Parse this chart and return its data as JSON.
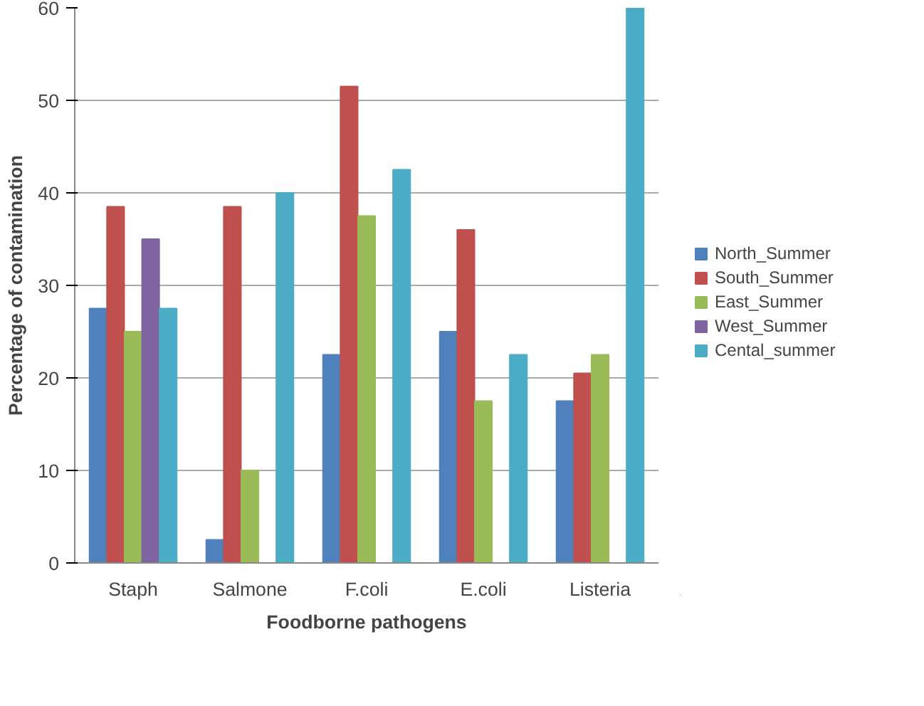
{
  "chart_data": {
    "type": "bar",
    "xlabel": "Foodborne pathogens",
    "ylabel": "Percentage of contamination",
    "categories": [
      "Staph",
      "Salmone",
      "F.coli",
      "E.coli",
      "Listeria"
    ],
    "series": [
      {
        "name": "North_Summer",
        "color": "#4f81bd",
        "values": [
          27.5,
          2.5,
          22.5,
          25,
          17.5
        ]
      },
      {
        "name": "South_Summer",
        "color": "#c0504d",
        "values": [
          38.5,
          38.5,
          51.5,
          36,
          20.5
        ]
      },
      {
        "name": "East_Summer",
        "color": "#9bbb59",
        "values": [
          25,
          10,
          37.5,
          17.5,
          22.5
        ]
      },
      {
        "name": "West_Summer",
        "color": "#8064a2",
        "values": [
          35,
          0,
          0,
          0,
          0
        ]
      },
      {
        "name": "Cental_summer",
        "color": "#4bacc6",
        "values": [
          27.5,
          40,
          42.5,
          22.5,
          60
        ]
      }
    ],
    "ylim": [
      0,
      60
    ],
    "yticks": [
      0,
      10,
      20,
      30,
      40,
      50,
      60
    ],
    "grid": "y",
    "legend": "right"
  }
}
